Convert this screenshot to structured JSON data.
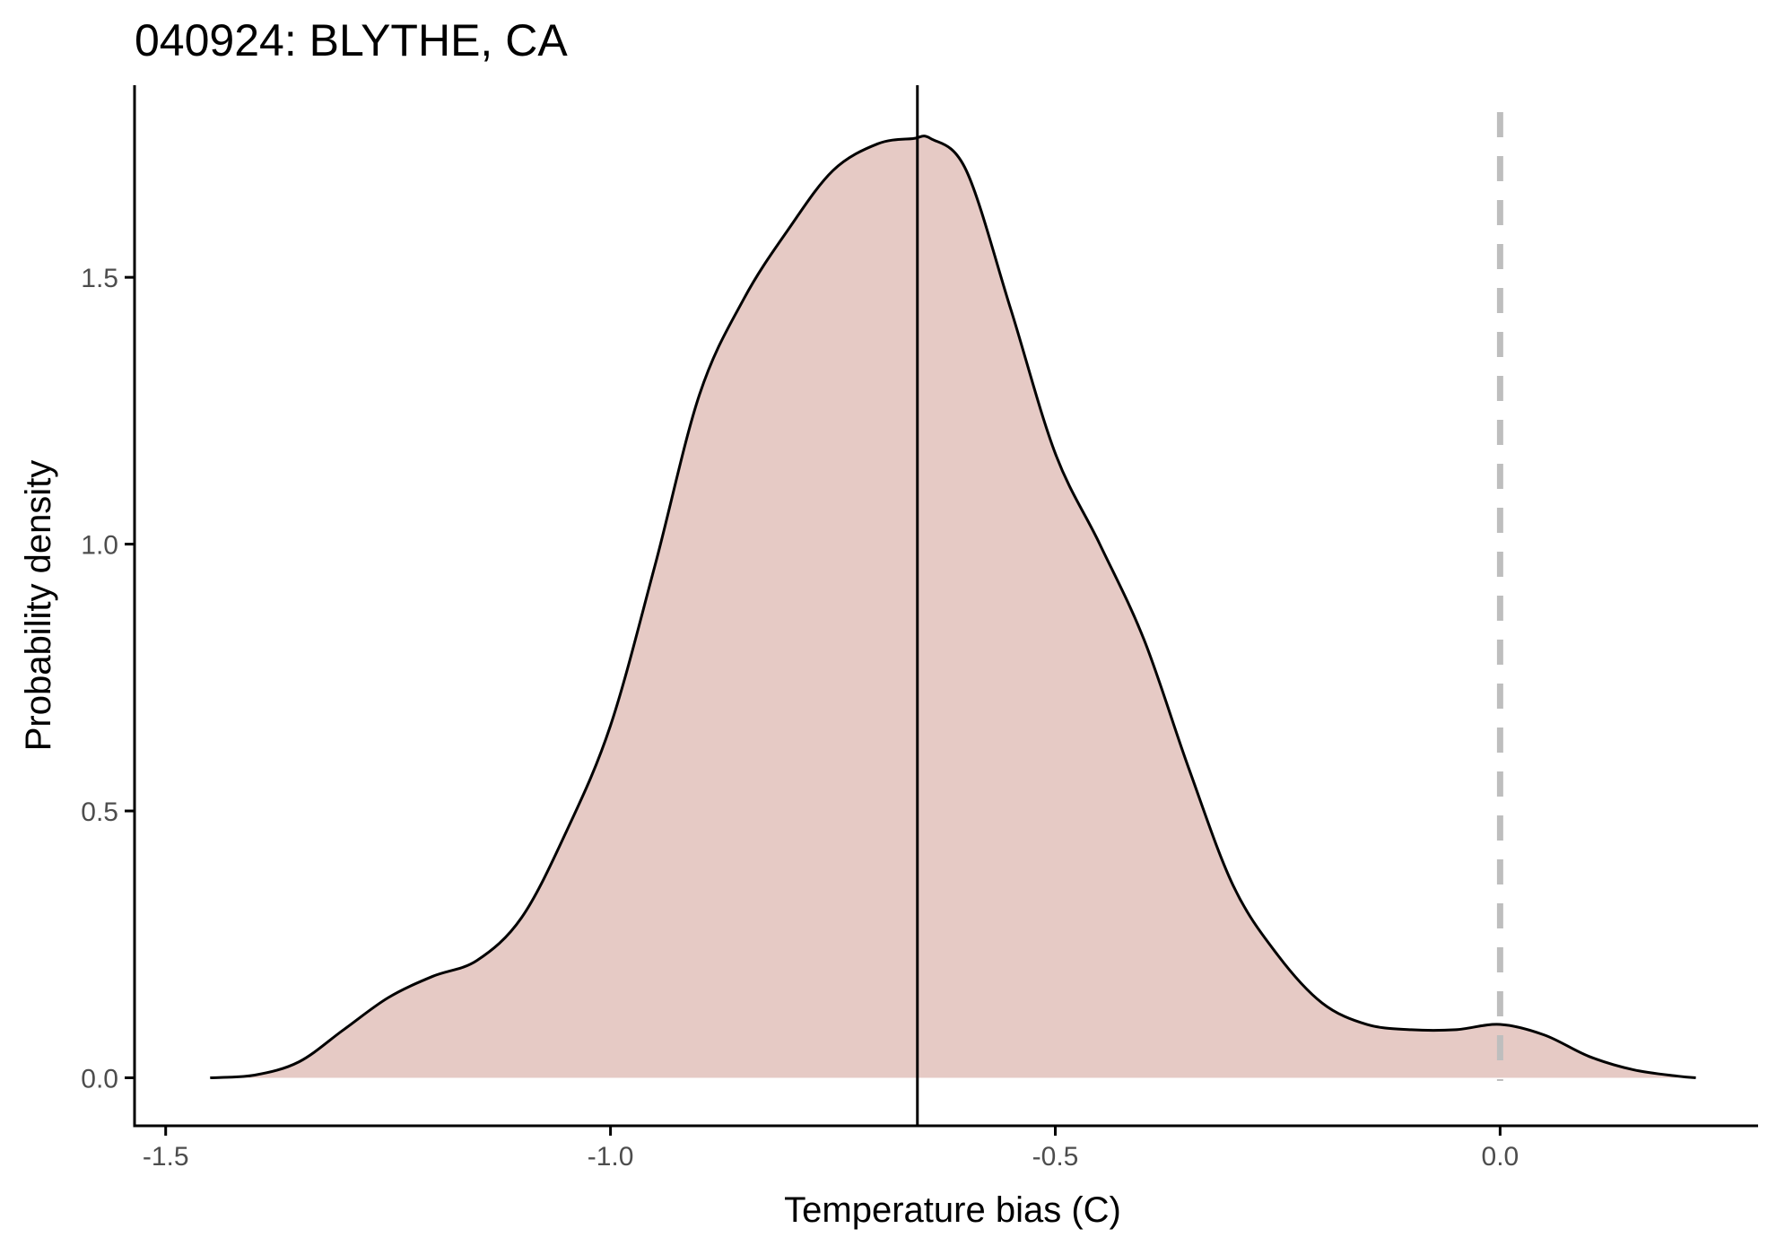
{
  "chart_data": {
    "type": "area",
    "title": "040924: BLYTHE, CA",
    "xlabel": "Temperature bias (C)",
    "ylabel": "Probability density",
    "xlim": [
      -1.535,
      0.29
    ],
    "ylim": [
      -0.09,
      1.86
    ],
    "x_ticks": [
      -1.5,
      -1.0,
      -0.5,
      0.0
    ],
    "x_tick_labels": [
      "-1.5",
      "-1.0",
      "-0.5",
      "0.0"
    ],
    "y_ticks": [
      0.0,
      0.5,
      1.0,
      1.5
    ],
    "y_tick_labels": [
      "0.0",
      "0.5",
      "1.0",
      "1.5"
    ],
    "grid": false,
    "legend": "none",
    "series": [
      {
        "x": [
          -1.45,
          -1.4,
          -1.35,
          -1.3,
          -1.25,
          -1.2,
          -1.15,
          -1.1,
          -1.05,
          -1.0,
          -0.95,
          -0.9,
          -0.85,
          -0.8,
          -0.75,
          -0.7,
          -0.66,
          -0.64,
          -0.6,
          -0.55,
          -0.5,
          -0.45,
          -0.4,
          -0.35,
          -0.3,
          -0.25,
          -0.2,
          -0.15,
          -0.1,
          -0.05,
          0.0,
          0.05,
          0.1,
          0.15,
          0.2,
          0.22
        ],
        "y": [
          0.0,
          0.005,
          0.03,
          0.09,
          0.15,
          0.19,
          0.22,
          0.3,
          0.46,
          0.66,
          0.96,
          1.28,
          1.46,
          1.59,
          1.7,
          1.75,
          1.76,
          1.76,
          1.7,
          1.44,
          1.17,
          1.0,
          0.82,
          0.58,
          0.36,
          0.23,
          0.14,
          0.1,
          0.09,
          0.09,
          0.1,
          0.08,
          0.04,
          0.015,
          0.003,
          0.0
        ]
      }
    ],
    "vlines": [
      {
        "x": -0.655,
        "style": "solid",
        "color": "#000000"
      },
      {
        "x": 0.0,
        "style": "dashed",
        "color": "#bebebe"
      }
    ],
    "colors": {
      "fill": "#e6cac5",
      "line": "#000000",
      "axis": "#000000",
      "tick_text": "#4d4d4d"
    }
  }
}
